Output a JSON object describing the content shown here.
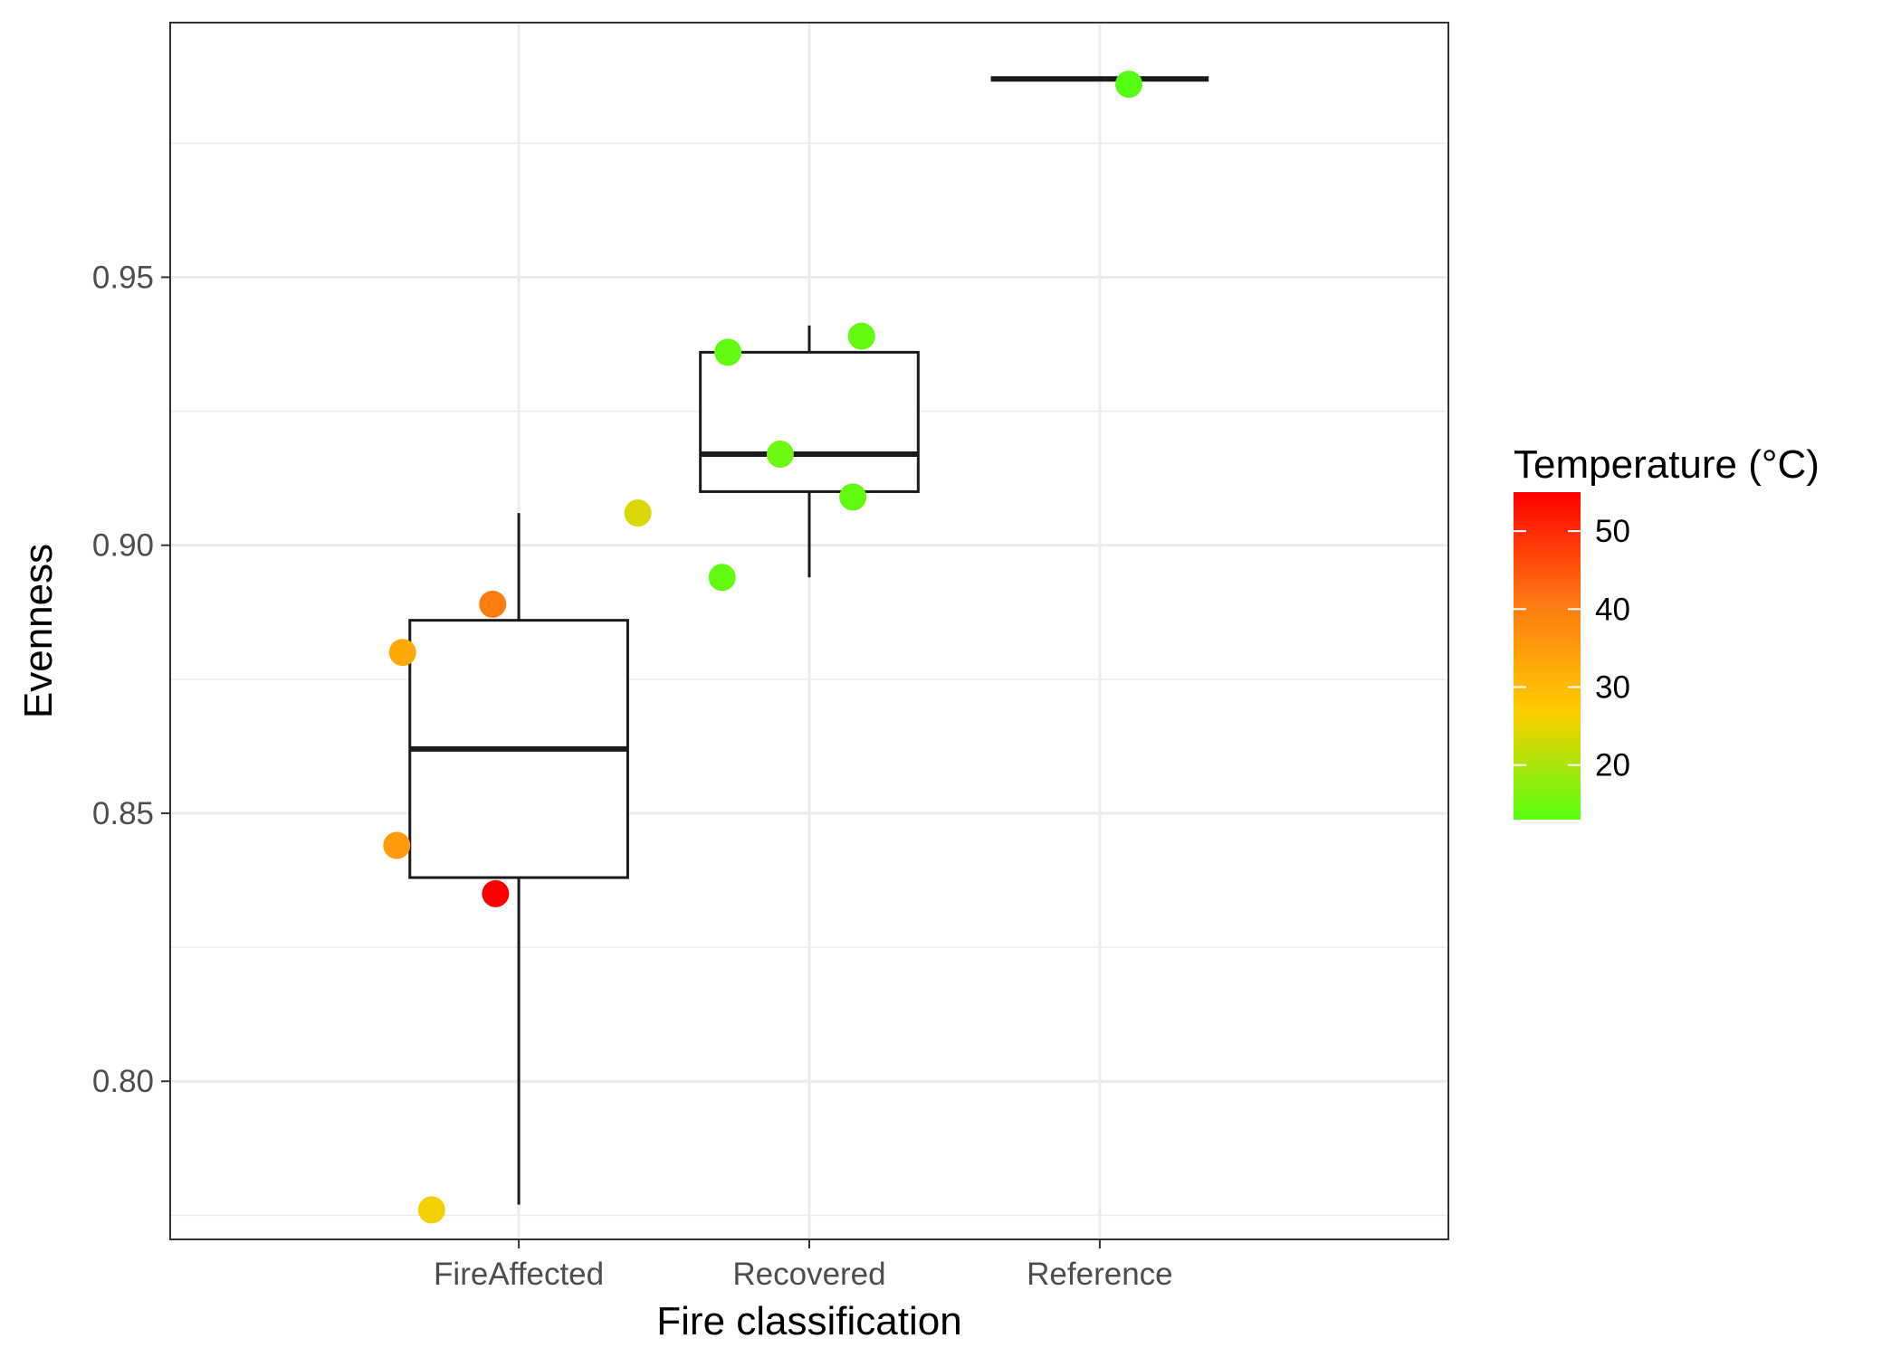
{
  "chart_data": {
    "type": "boxplot",
    "xlabel": "Fire classification",
    "ylabel": "Evenness",
    "categories": [
      "FireAffected",
      "Recovered",
      "Reference"
    ],
    "ylim": [
      0.7705,
      0.9975
    ],
    "yticks": [
      0.8,
      0.85,
      0.9,
      0.95
    ],
    "ytick_labels": [
      "0.80",
      "0.85",
      "0.90",
      "0.95"
    ],
    "grid": true,
    "legend_position": "right",
    "boxes": [
      {
        "category": "FireAffected",
        "lower_whisker": 0.777,
        "q1": 0.838,
        "median": 0.862,
        "q3": 0.886,
        "upper_whisker": 0.906
      },
      {
        "category": "Recovered",
        "lower_whisker": 0.894,
        "q1": 0.91,
        "median": 0.917,
        "q3": 0.936,
        "upper_whisker": 0.941
      },
      {
        "category": "Reference",
        "lower_whisker": 0.987,
        "q1": 0.987,
        "median": 0.987,
        "q3": 0.987,
        "upper_whisker": 0.987
      }
    ],
    "points": [
      {
        "category": "FireAffected",
        "jitter": -0.4,
        "y": 0.88,
        "temperature": 33
      },
      {
        "category": "FireAffected",
        "jitter": -0.09,
        "y": 0.889,
        "temperature": 40
      },
      {
        "category": "FireAffected",
        "jitter": -0.42,
        "y": 0.844,
        "temperature": 35
      },
      {
        "category": "FireAffected",
        "jitter": -0.08,
        "y": 0.835,
        "temperature": 55
      },
      {
        "category": "FireAffected",
        "jitter": -0.3,
        "y": 0.776,
        "temperature": 26
      },
      {
        "category": "FireAffected",
        "jitter": 0.41,
        "y": 0.906,
        "temperature": 24
      },
      {
        "category": "Recovered",
        "jitter": -0.28,
        "y": 0.936,
        "temperature": 14
      },
      {
        "category": "Recovered",
        "jitter": 0.18,
        "y": 0.939,
        "temperature": 14
      },
      {
        "category": "Recovered",
        "jitter": -0.1,
        "y": 0.917,
        "temperature": 15
      },
      {
        "category": "Recovered",
        "jitter": 0.15,
        "y": 0.909,
        "temperature": 14
      },
      {
        "category": "Recovered",
        "jitter": -0.3,
        "y": 0.894,
        "temperature": 14
      },
      {
        "category": "Reference",
        "jitter": 0.1,
        "y": 0.986,
        "temperature": 12
      }
    ],
    "legend": {
      "title": "Temperature (°C)",
      "range": [
        13,
        55
      ],
      "breaks": [
        20,
        30,
        40,
        50
      ],
      "break_labels": [
        "20",
        "30",
        "40",
        "50"
      ],
      "colors": [
        "#55ff11",
        "#ffcc00",
        "#ff7711",
        "#ff0000"
      ]
    }
  }
}
